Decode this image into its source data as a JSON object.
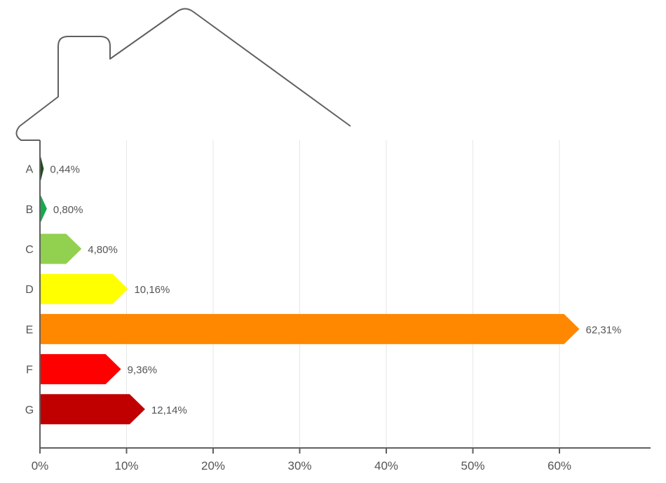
{
  "chart_data": {
    "type": "bar",
    "orientation": "horizontal",
    "title": "",
    "xlabel": "",
    "ylabel": "",
    "categories": [
      "A",
      "B",
      "C",
      "D",
      "E",
      "F",
      "G"
    ],
    "values": [
      0.44,
      0.8,
      4.8,
      10.16,
      62.31,
      9.36,
      12.14
    ],
    "value_labels": [
      "0,44%",
      "0,80%",
      "4,80%",
      "10,16%",
      "62,31%",
      "9,36%",
      "12,14%"
    ],
    "colors": [
      "#1f4d1f",
      "#17a94e",
      "#92d050",
      "#ffff00",
      "#ff8800",
      "#ff0000",
      "#c00000"
    ],
    "xlim": [
      0,
      70
    ],
    "x_ticks": [
      0,
      10,
      20,
      30,
      40,
      50,
      60
    ],
    "x_tick_labels": [
      "0%",
      "10%",
      "20%",
      "30%",
      "40%",
      "50%",
      "60%"
    ],
    "grid": true,
    "legend": "none",
    "decoration": "house-outline"
  }
}
